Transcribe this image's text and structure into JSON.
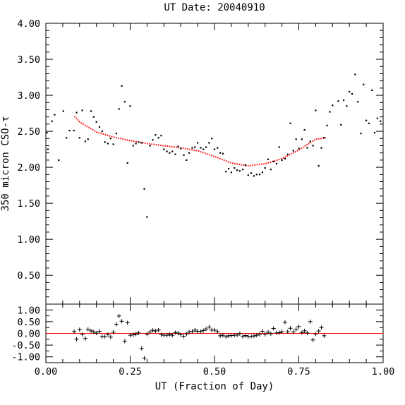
{
  "chart_data": {
    "type": "scatter",
    "title": "UT Date: 20040910",
    "xlabel": "UT (Fraction of Day)",
    "ylabel": "350 micron CSO-τ",
    "xlim": [
      0.0,
      1.0
    ],
    "ylim": [
      0.1,
      4.0
    ],
    "xticks": [
      "0.00",
      "0.25",
      "0.50",
      "0.75",
      "1.00"
    ],
    "yticks": [
      "4.00",
      "3.50",
      "3.00",
      "2.50",
      "2.00",
      "1.50",
      "1.00",
      "0.50"
    ],
    "grid": false,
    "colors": {
      "points": "#000000",
      "fit": "#ff0000"
    },
    "series": [
      {
        "kind": "points",
        "marker": "dot",
        "x": [
          0.003,
          0.006,
          0.018,
          0.026,
          0.038,
          0.052,
          0.061,
          0.07,
          0.083,
          0.091,
          0.1,
          0.108,
          0.117,
          0.125,
          0.134,
          0.142,
          0.15,
          0.159,
          0.167,
          0.175,
          0.184,
          0.192,
          0.2,
          0.209,
          0.217,
          0.225,
          0.234,
          0.242,
          0.25,
          0.259,
          0.267,
          0.275,
          0.284,
          0.292,
          0.3,
          0.309,
          0.317,
          0.325,
          0.334,
          0.342,
          0.35,
          0.359,
          0.367,
          0.375,
          0.384,
          0.392,
          0.4,
          0.409,
          0.417,
          0.425,
          0.434,
          0.442,
          0.45,
          0.459,
          0.467,
          0.475,
          0.484,
          0.492,
          0.5,
          0.509,
          0.517,
          0.525,
          0.534,
          0.542,
          0.55,
          0.559,
          0.567,
          0.575,
          0.584,
          0.592,
          0.6,
          0.609,
          0.617,
          0.625,
          0.634,
          0.642,
          0.65,
          0.659,
          0.667,
          0.675,
          0.684,
          0.692,
          0.7,
          0.709,
          0.717,
          0.725,
          0.734,
          0.742,
          0.75,
          0.759,
          0.767,
          0.775,
          0.784,
          0.792,
          0.8,
          0.809,
          0.817,
          0.825,
          0.834,
          0.842,
          0.85,
          0.867,
          0.875,
          0.883,
          0.892,
          0.9,
          0.908,
          0.917,
          0.925,
          0.934,
          0.942,
          0.95,
          0.958,
          0.967,
          0.975,
          0.983,
          0.992
        ],
        "y": [
          2.48,
          2.25,
          2.64,
          2.73,
          2.1,
          2.78,
          2.41,
          2.51,
          2.51,
          2.76,
          2.41,
          2.79,
          2.36,
          2.39,
          2.78,
          2.7,
          2.63,
          2.56,
          2.5,
          2.35,
          2.33,
          2.4,
          2.32,
          2.47,
          2.81,
          3.13,
          2.91,
          2.06,
          2.85,
          2.3,
          2.33,
          2.35,
          2.34,
          1.7,
          1.31,
          2.3,
          2.38,
          2.45,
          2.41,
          2.44,
          2.25,
          2.22,
          2.2,
          2.22,
          2.18,
          2.29,
          2.26,
          2.17,
          2.1,
          2.2,
          2.27,
          2.28,
          2.34,
          2.27,
          2.25,
          2.28,
          2.34,
          2.4,
          2.25,
          2.27,
          2.2,
          2.19,
          1.94,
          1.98,
          1.93,
          1.99,
          1.96,
          1.95,
          1.97,
          2.03,
          1.89,
          1.92,
          1.88,
          1.9,
          1.9,
          1.93,
          1.99,
          2.11,
          1.97,
          2.08,
          2.05,
          2.28,
          2.1,
          2.12,
          2.18,
          2.61,
          2.23,
          2.39,
          2.26,
          2.39,
          2.52,
          2.27,
          2.36,
          2.3,
          2.79,
          2.02,
          2.27,
          2.41,
          2.58,
          2.77,
          2.86,
          2.92,
          2.59,
          2.93,
          2.85,
          3.05,
          3.02,
          3.29,
          2.91,
          2.47,
          3.15,
          2.65,
          2.61,
          3.07,
          2.48,
          2.68,
          2.64
        ]
      },
      {
        "kind": "fit",
        "line": "dotted",
        "x": [
          0.085,
          0.1,
          0.15,
          0.2,
          0.25,
          0.3,
          0.35,
          0.4,
          0.45,
          0.5,
          0.55,
          0.6,
          0.65,
          0.7,
          0.75,
          0.8,
          0.83
        ],
        "y": [
          2.71,
          2.63,
          2.49,
          2.42,
          2.37,
          2.33,
          2.3,
          2.27,
          2.23,
          2.15,
          2.06,
          2.02,
          2.05,
          2.12,
          2.24,
          2.39,
          2.41
        ]
      }
    ],
    "residuals": {
      "ylim": [
        -1.25,
        1.25
      ],
      "yticks": [
        "1.00",
        "0.50",
        "0.00",
        "-0.50",
        "-1.00"
      ],
      "zero_line_color": "#ff0000",
      "marker": "plus",
      "x": [
        0.084,
        0.091,
        0.1,
        0.108,
        0.117,
        0.125,
        0.134,
        0.142,
        0.15,
        0.159,
        0.167,
        0.175,
        0.184,
        0.192,
        0.2,
        0.209,
        0.217,
        0.225,
        0.234,
        0.242,
        0.25,
        0.259,
        0.267,
        0.275,
        0.284,
        0.292,
        0.3,
        0.309,
        0.317,
        0.325,
        0.334,
        0.342,
        0.35,
        0.359,
        0.367,
        0.375,
        0.384,
        0.392,
        0.4,
        0.409,
        0.417,
        0.425,
        0.434,
        0.442,
        0.45,
        0.459,
        0.467,
        0.475,
        0.484,
        0.492,
        0.5,
        0.509,
        0.517,
        0.525,
        0.534,
        0.542,
        0.55,
        0.559,
        0.567,
        0.575,
        0.584,
        0.592,
        0.6,
        0.609,
        0.617,
        0.625,
        0.634,
        0.642,
        0.65,
        0.659,
        0.667,
        0.675,
        0.684,
        0.692,
        0.7,
        0.709,
        0.717,
        0.725,
        0.734,
        0.742,
        0.75,
        0.759,
        0.767,
        0.775,
        0.784,
        0.792,
        0.8,
        0.809,
        0.817,
        0.825
      ],
      "y": [
        0.08,
        -0.25,
        0.16,
        -0.05,
        -0.22,
        0.17,
        0.11,
        0.06,
        0.01,
        0.09,
        -0.13,
        -0.13,
        -0.05,
        -0.16,
        0.05,
        0.39,
        0.74,
        0.52,
        -0.33,
        0.45,
        -0.08,
        -0.06,
        -0.03,
        0.02,
        -0.64,
        -1.06,
        -0.03,
        0.06,
        0.13,
        0.1,
        0.14,
        -0.06,
        -0.08,
        -0.08,
        -0.04,
        -0.08,
        0.03,
        0.01,
        -0.06,
        -0.12,
        -0.02,
        0.06,
        0.08,
        0.14,
        0.09,
        0.08,
        0.12,
        0.19,
        0.27,
        0.14,
        0.14,
        0.08,
        -0.1,
        -0.08,
        -0.14,
        -0.1,
        -0.09,
        -0.08,
        -0.07,
        -0.01,
        -0.13,
        -0.09,
        -0.13,
        -0.12,
        -0.11,
        -0.08,
        -0.04,
        0.09,
        -0.04,
        0.05,
        -0.01,
        0.21,
        0.02,
        0.03,
        0.07,
        0.48,
        0.07,
        0.22,
        0.06,
        0.18,
        0.29,
        0.03,
        0.11,
        0.02,
        0.5,
        -0.28,
        -0.03,
        0.1,
        0.25,
        -0.1
      ]
    }
  }
}
